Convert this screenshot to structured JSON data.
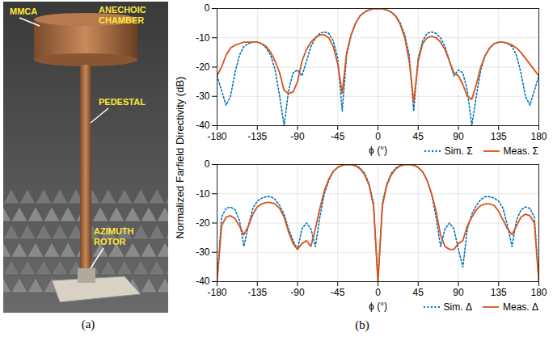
{
  "panel_a": {
    "caption": "(a)",
    "labels": [
      "MMCA",
      "ANECHOIC CHAMBER",
      "PEDESTAL",
      "AZIMUTH ROTOR"
    ]
  },
  "panel_b": {
    "caption": "(b)",
    "ylabel": "Normalized Farfield Directivity (dB)"
  },
  "chart_data": [
    {
      "type": "line",
      "xlabel": "ϕ (°)",
      "xlim": [
        -180,
        180
      ],
      "xticks": [
        -180,
        -135,
        -90,
        -45,
        0,
        45,
        90,
        135,
        180
      ],
      "ylim": [
        -40,
        0
      ],
      "yticks": [
        0,
        -10,
        -20,
        -30,
        -40
      ],
      "grid": true,
      "legend": "bottom-right",
      "x": [
        -180,
        -175,
        -170,
        -165,
        -160,
        -155,
        -150,
        -145,
        -140,
        -135,
        -130,
        -125,
        -120,
        -115,
        -110,
        -105,
        -100,
        -95,
        -90,
        -85,
        -80,
        -75,
        -70,
        -65,
        -60,
        -55,
        -50,
        -45,
        -40,
        -35,
        -30,
        -25,
        -20,
        -15,
        -10,
        -5,
        0,
        5,
        10,
        15,
        20,
        25,
        30,
        35,
        40,
        45,
        50,
        55,
        60,
        65,
        70,
        75,
        80,
        85,
        90,
        95,
        100,
        105,
        110,
        115,
        120,
        125,
        130,
        135,
        140,
        145,
        150,
        155,
        160,
        165,
        170,
        175,
        180
      ],
      "series": [
        {
          "name": "Sim. Σ",
          "color": "#0072bd",
          "line_style": "dotted",
          "values": [
            -23,
            -28,
            -33,
            -30,
            -22,
            -16,
            -13,
            -12,
            -11.5,
            -11.5,
            -12,
            -13.5,
            -16,
            -21,
            -30,
            -40,
            -28,
            -22,
            -21,
            -23,
            -18,
            -13,
            -10,
            -8.5,
            -8,
            -8.5,
            -11,
            -17,
            -35,
            -16,
            -9,
            -5,
            -2.5,
            -1.2,
            -0.5,
            -0.1,
            0,
            -0.1,
            -0.5,
            -1.2,
            -2.5,
            -5,
            -9,
            -16,
            -35,
            -17,
            -11,
            -8.5,
            -8,
            -8.5,
            -10,
            -13,
            -18,
            -23,
            -21,
            -22,
            -28,
            -40,
            -30,
            -21,
            -16,
            -13.5,
            -12,
            -11.5,
            -11.5,
            -12,
            -13,
            -16,
            -22,
            -30,
            -33,
            -28,
            -23
          ]
        },
        {
          "name": "Meas. Σ",
          "color": "#d95319",
          "line_style": "solid",
          "values": [
            -23,
            -20,
            -16,
            -13.5,
            -12.5,
            -12,
            -11.5,
            -11.5,
            -11.5,
            -11.5,
            -12,
            -13,
            -15,
            -18,
            -22,
            -28,
            -29,
            -28.5,
            -25,
            -18,
            -14,
            -11.5,
            -10,
            -9,
            -9,
            -10,
            -13,
            -19,
            -29,
            -15,
            -9,
            -5,
            -2.5,
            -1.2,
            -0.5,
            -0.1,
            0,
            -0.1,
            -0.5,
            -1.3,
            -2.7,
            -5.5,
            -10,
            -18,
            -32,
            -18,
            -12,
            -10,
            -9.5,
            -10,
            -11.5,
            -14,
            -18,
            -22,
            -23,
            -26,
            -30,
            -31,
            -26,
            -20,
            -16,
            -13.5,
            -12,
            -11.5,
            -11.5,
            -11.8,
            -12.5,
            -13.5,
            -15,
            -17,
            -19,
            -21,
            -23
          ]
        }
      ]
    },
    {
      "type": "line",
      "xlabel": "ϕ (°)",
      "xlim": [
        -180,
        180
      ],
      "xticks": [
        -180,
        -135,
        -90,
        -45,
        0,
        45,
        90,
        135,
        180
      ],
      "ylim": [
        -40,
        0
      ],
      "yticks": [
        0,
        -10,
        -20,
        -30,
        -40
      ],
      "grid": true,
      "legend": "bottom-right",
      "x": [
        -180,
        -175,
        -170,
        -165,
        -160,
        -155,
        -150,
        -145,
        -140,
        -135,
        -130,
        -125,
        -120,
        -115,
        -110,
        -105,
        -100,
        -95,
        -90,
        -85,
        -80,
        -75,
        -70,
        -65,
        -60,
        -55,
        -50,
        -45,
        -40,
        -35,
        -30,
        -25,
        -20,
        -15,
        -10,
        -5,
        0,
        5,
        10,
        15,
        20,
        25,
        30,
        35,
        40,
        45,
        50,
        55,
        60,
        65,
        70,
        75,
        80,
        85,
        90,
        95,
        100,
        105,
        110,
        115,
        120,
        125,
        130,
        135,
        140,
        145,
        150,
        155,
        160,
        165,
        170,
        175,
        180
      ],
      "series": [
        {
          "name": "Sim. Δ",
          "color": "#0072bd",
          "line_style": "dotted",
          "values": [
            -40,
            -18,
            -15,
            -14.5,
            -15.5,
            -19,
            -28,
            -21,
            -15,
            -12.5,
            -11.5,
            -11,
            -11,
            -12,
            -14,
            -17,
            -22,
            -26,
            -29,
            -22,
            -20,
            -22,
            -28,
            -18,
            -10,
            -5.5,
            -2.5,
            -1,
            -0.3,
            0,
            0,
            -0.3,
            -1.2,
            -3,
            -6.5,
            -13,
            -40,
            -13,
            -6.5,
            -3,
            -1.2,
            -0.3,
            0,
            0,
            -0.3,
            -1,
            -2.5,
            -5.5,
            -10,
            -18,
            -28,
            -22,
            -20,
            -22,
            -29,
            -35,
            -22,
            -17,
            -14,
            -12,
            -11,
            -11,
            -11.5,
            -12.5,
            -15,
            -21,
            -28,
            -19,
            -15.5,
            -14.5,
            -15,
            -18,
            -40
          ]
        },
        {
          "name": "Meas. Δ",
          "color": "#d95319",
          "line_style": "solid",
          "values": [
            -40,
            -21,
            -18,
            -17.5,
            -18.5,
            -21,
            -24,
            -21,
            -17,
            -14.5,
            -13.5,
            -13,
            -13,
            -13.5,
            -15,
            -18,
            -23,
            -27,
            -29,
            -27,
            -26,
            -28,
            -22,
            -15,
            -9,
            -5,
            -2.3,
            -1,
            -0.3,
            0,
            -0.1,
            -0.5,
            -1.5,
            -3.5,
            -7,
            -14,
            -40,
            -14,
            -7,
            -3.5,
            -1.5,
            -0.5,
            -0.1,
            0,
            -0.3,
            -1,
            -2.5,
            -5.5,
            -10,
            -16,
            -24,
            -28,
            -29,
            -29,
            -27,
            -26,
            -21,
            -18,
            -15.5,
            -14,
            -13.5,
            -13.5,
            -14,
            -16,
            -19,
            -22,
            -24,
            -21,
            -18,
            -17,
            -17.5,
            -20,
            -40
          ]
        }
      ]
    }
  ]
}
